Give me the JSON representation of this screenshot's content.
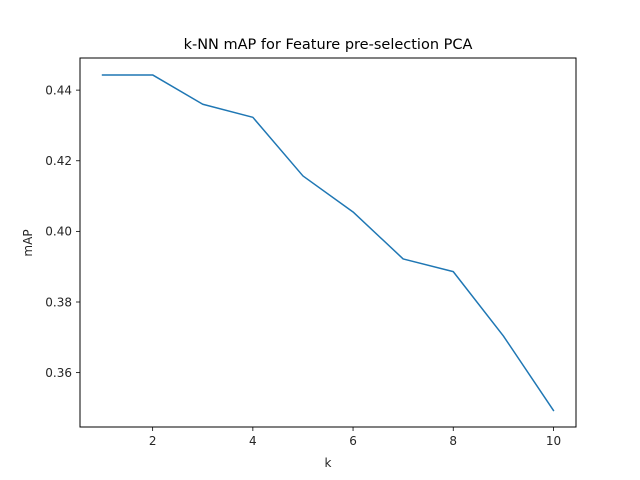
{
  "chart_data": {
    "type": "line",
    "title": "k-NN mAP for Feature pre-selection PCA",
    "xlabel": "k",
    "ylabel": "mAP",
    "x": [
      1,
      2,
      3,
      4,
      5,
      6,
      7,
      8,
      9,
      10
    ],
    "series": [
      {
        "values": [
          0.4443,
          0.4443,
          0.436,
          0.4323,
          0.4157,
          0.4055,
          0.3922,
          0.3886,
          0.3704,
          0.3493
        ],
        "color": "#1f77b4"
      }
    ],
    "xlim": [
      0.55,
      10.45
    ],
    "ylim": [
      0.3446,
      0.4491
    ],
    "xticks": [
      2,
      4,
      6,
      8,
      10
    ],
    "yticks": [
      0.36,
      0.38,
      0.4,
      0.42,
      0.44
    ],
    "xtick_labels": [
      "2",
      "4",
      "6",
      "8",
      "10"
    ],
    "ytick_labels": [
      "0.36",
      "0.38",
      "0.40",
      "0.42",
      "0.44"
    ],
    "grid": false,
    "legend": "none"
  }
}
